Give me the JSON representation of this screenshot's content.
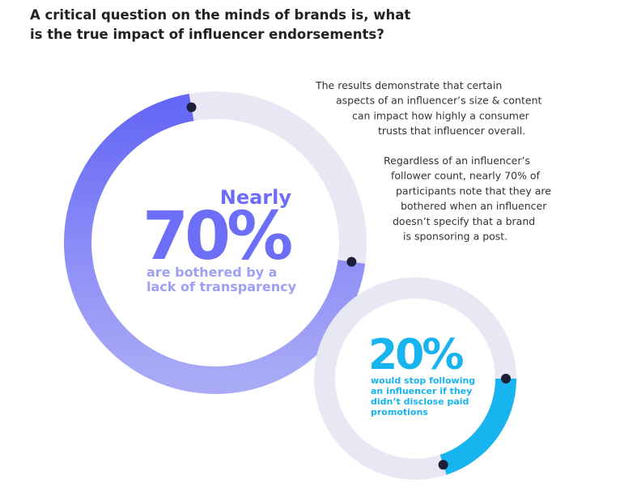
{
  "title": [
    "A critical question on the minds of brands is, what",
    "is the true impact of influencer endorsements?"
  ],
  "paragraphs": [
    [
      "The results demonstrate that certain",
      "aspects of an influencer’s size & content",
      "can impact how highly a consumer",
      "trusts that influencer overall."
    ],
    [
      "Regardless of an influencer’s",
      "follower count, nearly 70% of",
      "participants note that they are",
      "bothered when an influencer",
      "doesn’t specify that a brand",
      "is sponsoring a post."
    ]
  ],
  "stats": [
    {
      "lead": "Nearly",
      "value": 70,
      "value_label": "70%",
      "caption": [
        "are bothered by a",
        "lack of transparency"
      ],
      "color": "#6c6ef7"
    },
    {
      "value": 20,
      "value_label": "20%",
      "caption": [
        "would stop following",
        "an influencer if they",
        "didn’t disclose paid",
        "promotions"
      ],
      "color": "#17b4ef"
    }
  ]
}
